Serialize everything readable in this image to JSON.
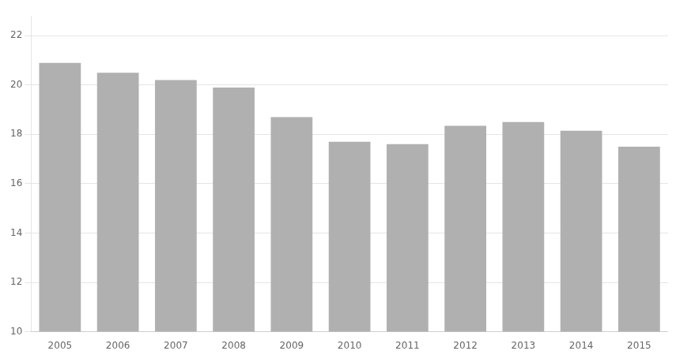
{
  "chart_data": {
    "type": "bar",
    "categories": [
      "2005",
      "2006",
      "2007",
      "2008",
      "2009",
      "2010",
      "2011",
      "2012",
      "2013",
      "2014",
      "2015"
    ],
    "values": [
      20.9,
      20.5,
      20.2,
      19.9,
      18.7,
      17.7,
      17.6,
      18.35,
      18.5,
      18.15,
      17.5
    ],
    "color": "#b0b0b0",
    "ylim": [
      10,
      22.8
    ],
    "yticks": [
      10,
      12,
      14,
      16,
      18,
      20,
      22
    ],
    "grid": true
  }
}
